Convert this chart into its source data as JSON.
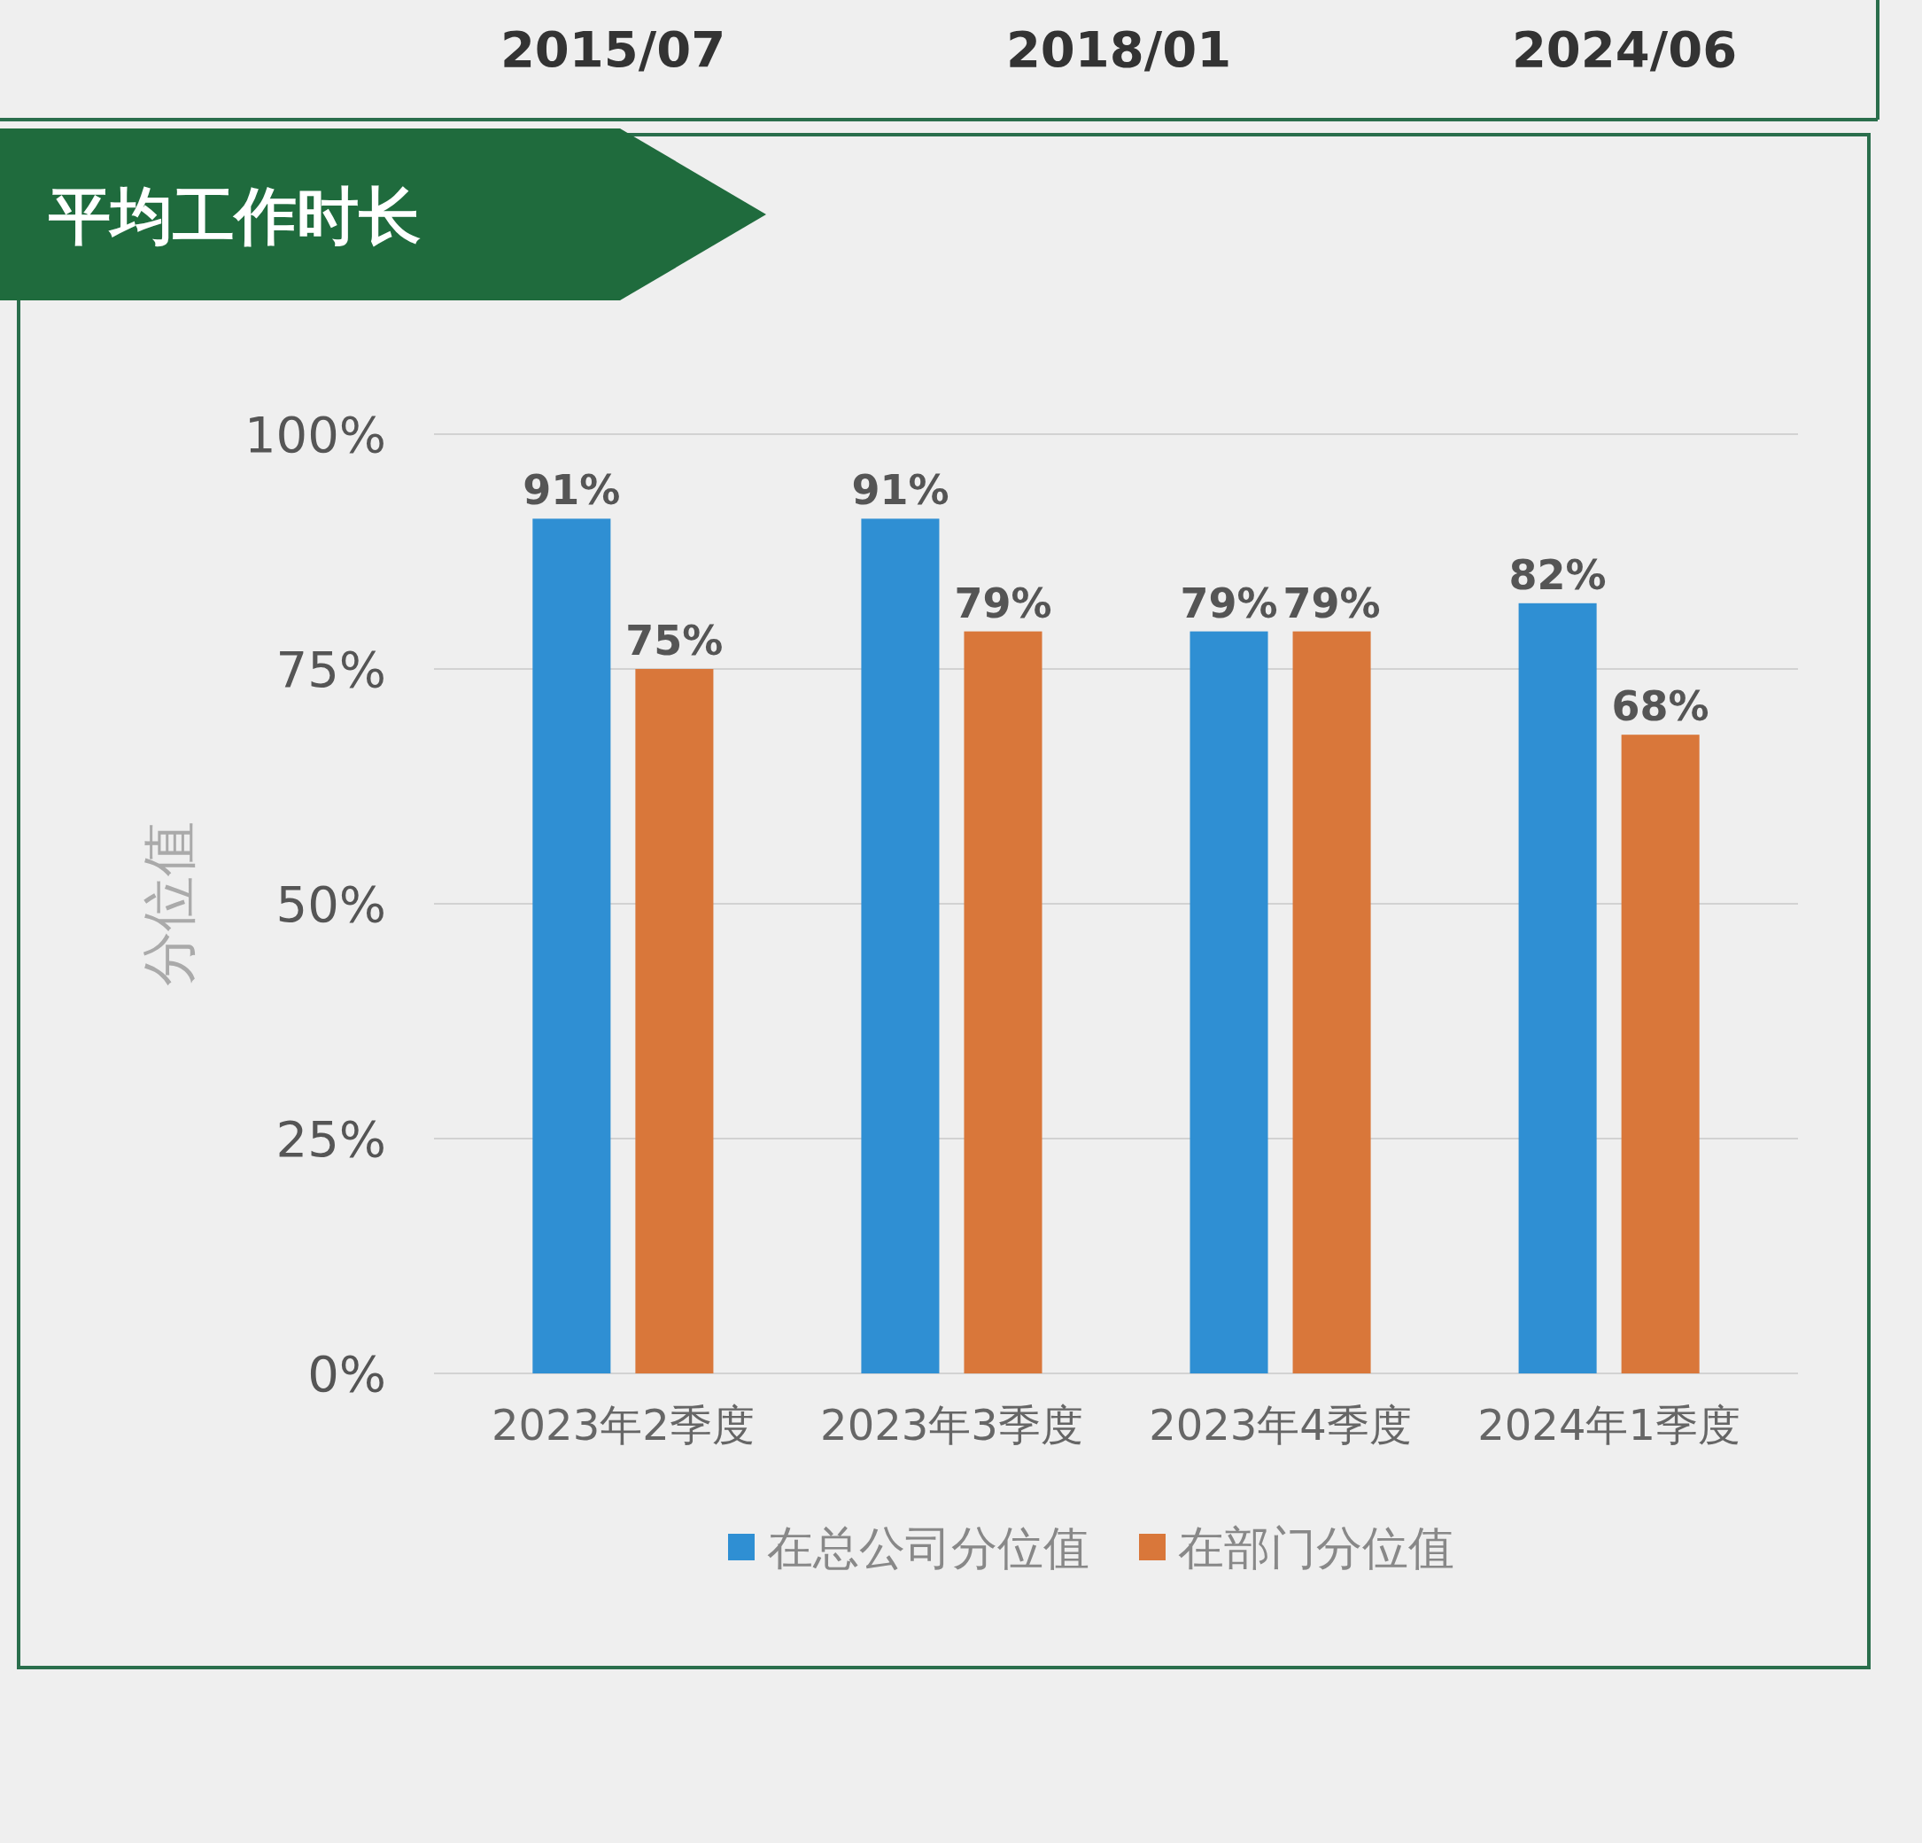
{
  "chart_data": {
    "type": "bar",
    "title": "平均工作时长",
    "ylabel": "分位值",
    "categories": [
      "2023年2季度",
      "2023年3季度",
      "2023年4季度",
      "2024年1季度"
    ],
    "series": [
      {
        "name": "在总公司分位值",
        "color": "#2f8fd3",
        "values": [
          91,
          91,
          79,
          82
        ],
        "value_labels": [
          "91%",
          "91%",
          "79%",
          "82%"
        ]
      },
      {
        "name": "在部门分位值",
        "color": "#d9773a",
        "values": [
          75,
          79,
          79,
          68
        ],
        "value_labels": [
          "75%",
          "79%",
          "79%",
          "68%"
        ]
      }
    ],
    "ylim": [
      0,
      100
    ],
    "yticks": [
      {
        "value": 0,
        "label": "0%"
      },
      {
        "value": 25,
        "label": "25%"
      },
      {
        "value": 50,
        "label": "50%"
      },
      {
        "value": 75,
        "label": "75%"
      },
      {
        "value": 100,
        "label": "100%"
      }
    ],
    "grid": "y",
    "legend": "bottom",
    "annotations": [
      "2015/07",
      "2018/01",
      "2024/06"
    ]
  }
}
